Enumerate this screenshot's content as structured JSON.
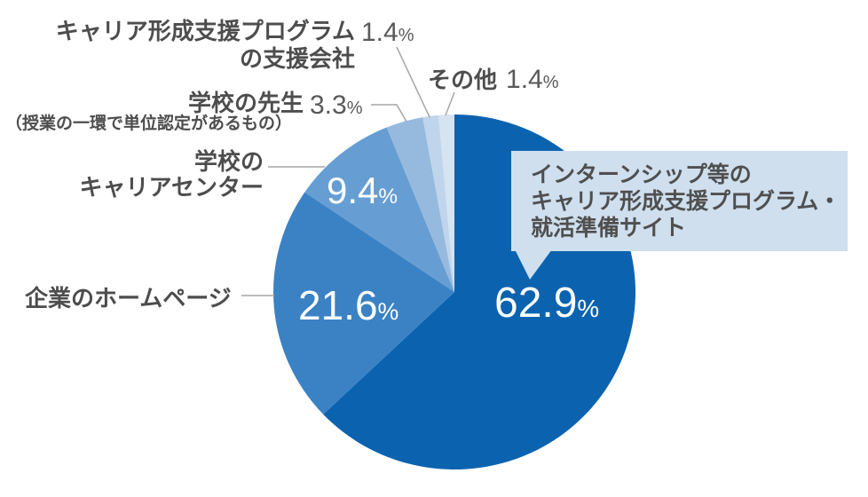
{
  "chart_data": {
    "type": "pie",
    "title": "",
    "unit": "%",
    "start_angle_deg": 0,
    "direction": "clockwise",
    "legend_position": "none",
    "slices": [
      {
        "label": "インターンシップ等のキャリア形成支援プログラム・就活準備サイト",
        "value": 62.9,
        "color": "#0b63b0"
      },
      {
        "label": "企業のホームページ",
        "value": 21.6,
        "color": "#3b82c4"
      },
      {
        "label": "学校のキャリアセンター",
        "value": 9.4,
        "color": "#669ed3"
      },
      {
        "label": "学校の先生（授業の一環で単位認定があるもの）",
        "value": 3.3,
        "color": "#96bade"
      },
      {
        "label": "キャリア形成支援プログラムの支援会社",
        "value": 1.4,
        "color": "#c0d5eb"
      },
      {
        "label": "その他",
        "value": 1.4,
        "color": "#d6e3f1"
      }
    ]
  },
  "annotations": {
    "support_company": {
      "line1": "キャリア形成支援プログラム",
      "line2": "の支援会社",
      "value": "1.4",
      "unit": "%"
    },
    "teacher": {
      "name": "学校の先生",
      "note": "（授業の一環で単位認定があるもの）",
      "value": "3.3",
      "unit": "%"
    },
    "sonota": {
      "name": "その他",
      "value": "1.4",
      "unit": "%"
    },
    "career_center": {
      "line1": "学校の",
      "line2": "キャリアセンター"
    },
    "company_hp": {
      "name": "企業のホームページ"
    },
    "slice_values": {
      "main": {
        "value": "62.9",
        "unit": "%"
      },
      "company_hp": {
        "value": "21.6",
        "unit": "%"
      },
      "career_center": {
        "value": "9.4",
        "unit": "%"
      }
    }
  },
  "callout": {
    "lines": [
      "インターンシップ等の",
      "キャリア形成支援プログラム・",
      "就活準備サイト"
    ],
    "bg": "#cfdfee",
    "text_color": "#4f4f4f"
  },
  "colors": {
    "label_text": "#4d4d4d",
    "number_text": "#595959",
    "leader_line": "#a6a6a6",
    "background": "#ffffff"
  }
}
